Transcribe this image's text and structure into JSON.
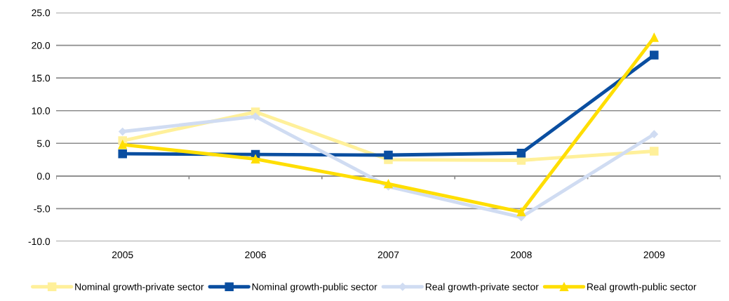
{
  "chart_data": {
    "type": "line",
    "categories": [
      "2005",
      "2006",
      "2007",
      "2008",
      "2009"
    ],
    "series": [
      {
        "name": "Nominal growth-private sector",
        "color": "#fff09a",
        "marker": "square",
        "values": [
          5.4,
          9.8,
          2.5,
          2.4,
          3.8
        ]
      },
      {
        "name": "Nominal growth-public sector",
        "color": "#0a4ea0",
        "marker": "square",
        "values": [
          3.4,
          3.3,
          3.2,
          3.5,
          18.5
        ]
      },
      {
        "name": "Real growth-private sector",
        "color": "#d0dcf2",
        "marker": "diamond",
        "values": [
          6.8,
          9.1,
          -1.6,
          -6.3,
          6.4
        ]
      },
      {
        "name": "Real growth-public sector",
        "color": "#ffde00",
        "marker": "triangle",
        "values": [
          4.8,
          2.6,
          -1.2,
          -5.5,
          21.2
        ]
      }
    ],
    "ylim": [
      -10,
      25
    ],
    "yticks": [
      {
        "value": -10,
        "label": "-10.0"
      },
      {
        "value": -5,
        "label": "-5.0"
      },
      {
        "value": 0,
        "label": "0.0"
      },
      {
        "value": 5,
        "label": "5.0"
      },
      {
        "value": 10,
        "label": "10.0"
      },
      {
        "value": 15,
        "label": "15.0"
      },
      {
        "value": 20,
        "label": "20.0"
      },
      {
        "value": 25,
        "label": "25.0"
      }
    ],
    "grid": "y",
    "legend": "bottom"
  }
}
